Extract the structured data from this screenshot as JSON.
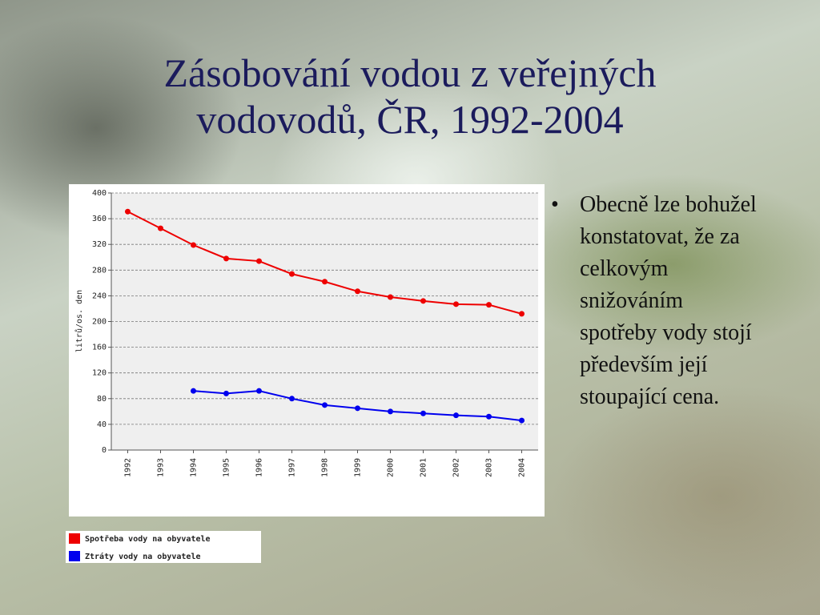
{
  "slide": {
    "title": [
      "Zásobování vodou z veřejných",
      "vodovodů, ČR, 1992-2004"
    ],
    "bullet": "Obecně lze bohužel konstatovat, že za celkovým snižováním spotřeby vody stojí především její stoupající cena."
  },
  "chart_data": {
    "type": "line",
    "y_label": "litrů/os. den",
    "categories": [
      "1992",
      "1993",
      "1994",
      "1995",
      "1996",
      "1997",
      "1998",
      "1999",
      "2000",
      "2001",
      "2002",
      "2003",
      "2004"
    ],
    "series": [
      {
        "name": "Spotřeba vody na obyvatele",
        "color": "#ee0000",
        "values": [
          371,
          345,
          319,
          298,
          294,
          274,
          262,
          247,
          238,
          232,
          227,
          226,
          212
        ]
      },
      {
        "name": "Ztráty vody na obyvatele",
        "color": "#0000ee",
        "values": [
          null,
          null,
          92,
          88,
          92,
          80,
          70,
          65,
          60,
          57,
          54,
          52,
          46
        ]
      }
    ],
    "ylim": [
      0,
      400
    ],
    "yticks": [
      0,
      40,
      80,
      120,
      160,
      200,
      240,
      280,
      320,
      360,
      400
    ],
    "grid": true
  }
}
